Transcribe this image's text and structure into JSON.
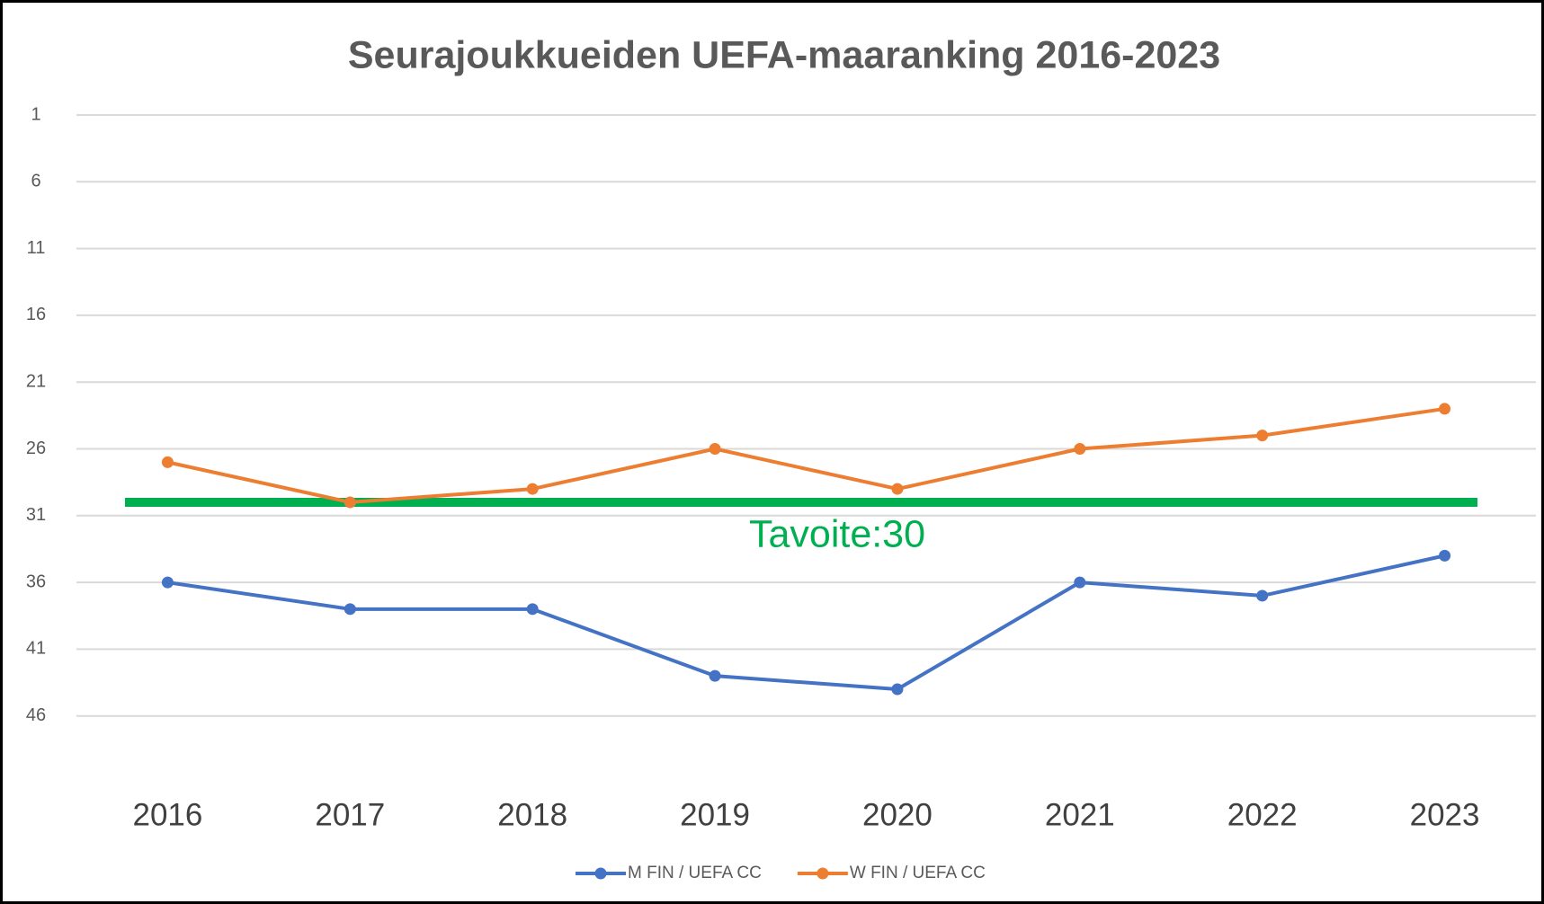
{
  "chart_data": {
    "type": "line",
    "title": "Seurajoukkueiden UEFA-maaranking 2016-2023",
    "categories": [
      "2016",
      "2017",
      "2018",
      "2019",
      "2020",
      "2021",
      "2022",
      "2023"
    ],
    "series": [
      {
        "name": "M FIN / UEFA CC",
        "color": "#4472c4",
        "values": [
          36,
          38,
          38,
          43,
          44,
          36,
          37,
          34
        ]
      },
      {
        "name": "W FIN / UEFA CC",
        "color": "#ed7d31",
        "values": [
          27,
          30,
          29,
          26,
          29,
          26,
          25,
          23
        ]
      }
    ],
    "target": {
      "value": 30,
      "label": "Tavoite:30",
      "color": "#00b050"
    },
    "ylim": [
      1,
      51
    ],
    "yticks": [
      1,
      6,
      11,
      16,
      21,
      26,
      31,
      36,
      41,
      46
    ],
    "reversed": true,
    "grid": true,
    "legend": "bottom"
  }
}
